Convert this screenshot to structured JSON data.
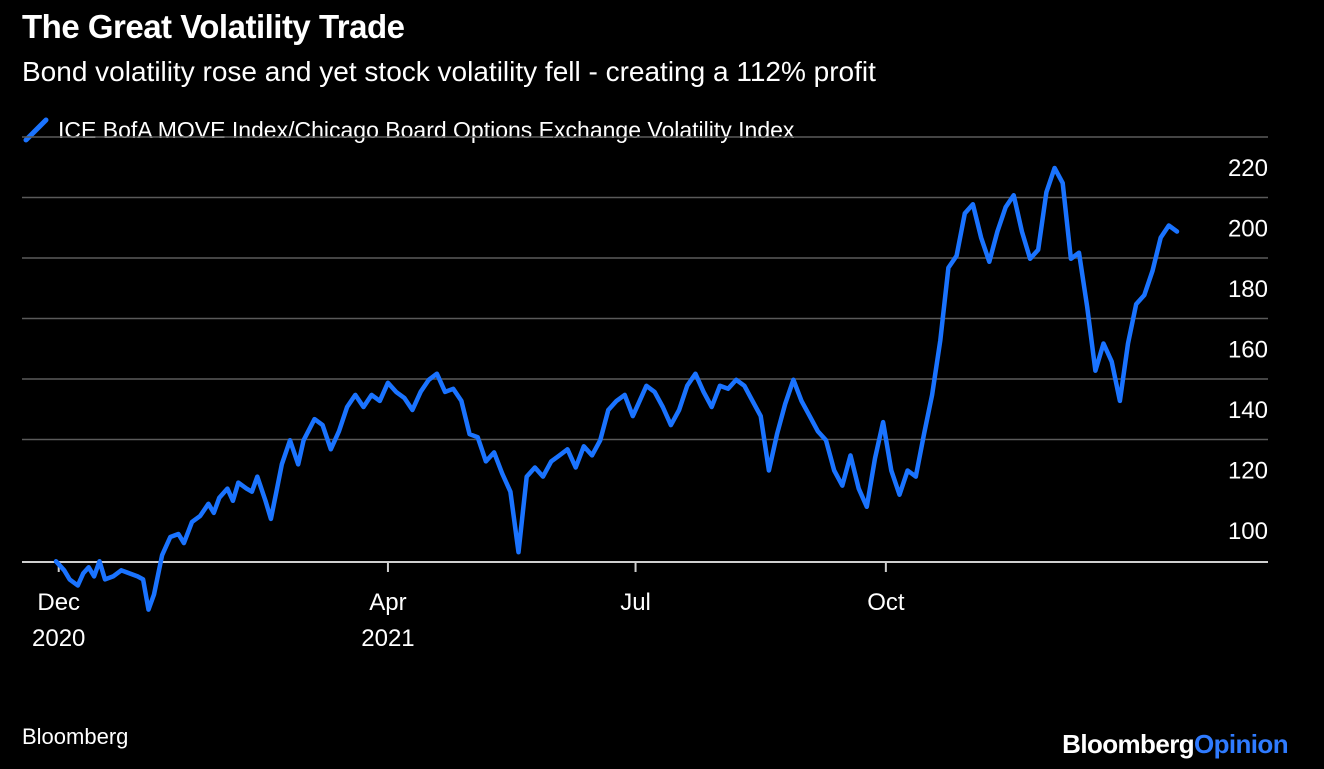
{
  "header": {
    "title": "The Great Volatility Trade",
    "subtitle": "Bond volatility rose and yet stock volatility fell - creating a 112% profit"
  },
  "legend": {
    "label": "ICE BofA MOVE Index/Chicago Board Options Exchange Volatility Index",
    "color": "#1a73ff"
  },
  "footer": {
    "source": "Bloomberg",
    "brand_part1": "Bloomberg",
    "brand_part2": "Opinion"
  },
  "chart_data": {
    "type": "line",
    "title": "The Great Volatility Trade",
    "subtitle": "Bond volatility rose and yet stock volatility fell - creating a 112% profit",
    "xlabel": "",
    "ylabel": "",
    "ylim": [
      90,
      220
    ],
    "y_ticks": [
      100,
      120,
      140,
      160,
      180,
      200,
      220
    ],
    "y_axis_side": "right",
    "grid": true,
    "legend_position": "top-left",
    "x_ticks": [
      {
        "date": "2020-12-01",
        "label": "Dec",
        "sublabel": "2020"
      },
      {
        "date": "2021-04-01",
        "label": "Apr",
        "sublabel": "2021"
      },
      {
        "date": "2021-07-01",
        "label": "Jul",
        "sublabel": ""
      },
      {
        "date": "2021-10-01",
        "label": "Oct",
        "sublabel": ""
      }
    ],
    "x_range": [
      "2020-11-30",
      "2022-01-16"
    ],
    "series": [
      {
        "name": "ICE BofA MOVE Index/Chicago Board Options Exchange Volatility Index",
        "color": "#1a73ff",
        "points": [
          [
            "2020-11-30",
            90
          ],
          [
            "2020-12-03",
            87
          ],
          [
            "2020-12-05",
            84
          ],
          [
            "2020-12-08",
            82
          ],
          [
            "2020-12-10",
            86
          ],
          [
            "2020-12-12",
            88
          ],
          [
            "2020-12-14",
            85
          ],
          [
            "2020-12-16",
            90
          ],
          [
            "2020-12-18",
            84
          ],
          [
            "2020-12-21",
            85
          ],
          [
            "2020-12-24",
            87
          ],
          [
            "2020-12-27",
            86
          ],
          [
            "2020-12-30",
            85
          ],
          [
            "2021-01-01",
            84
          ],
          [
            "2021-01-03",
            74
          ],
          [
            "2021-01-05",
            79
          ],
          [
            "2021-01-08",
            92
          ],
          [
            "2021-01-11",
            98
          ],
          [
            "2021-01-14",
            99
          ],
          [
            "2021-01-16",
            96
          ],
          [
            "2021-01-19",
            103
          ],
          [
            "2021-01-22",
            105
          ],
          [
            "2021-01-25",
            109
          ],
          [
            "2021-01-27",
            106
          ],
          [
            "2021-01-29",
            111
          ],
          [
            "2021-02-01",
            114
          ],
          [
            "2021-02-03",
            110
          ],
          [
            "2021-02-05",
            116
          ],
          [
            "2021-02-08",
            114
          ],
          [
            "2021-02-10",
            113
          ],
          [
            "2021-02-12",
            118
          ],
          [
            "2021-02-15",
            110
          ],
          [
            "2021-02-17",
            104
          ],
          [
            "2021-02-19",
            113
          ],
          [
            "2021-02-21",
            122
          ],
          [
            "2021-02-24",
            130
          ],
          [
            "2021-02-27",
            122
          ],
          [
            "2021-03-01",
            130
          ],
          [
            "2021-03-05",
            137
          ],
          [
            "2021-03-08",
            135
          ],
          [
            "2021-03-11",
            127
          ],
          [
            "2021-03-14",
            133
          ],
          [
            "2021-03-17",
            141
          ],
          [
            "2021-03-20",
            145
          ],
          [
            "2021-03-23",
            141
          ],
          [
            "2021-03-26",
            145
          ],
          [
            "2021-03-29",
            143
          ],
          [
            "2021-04-01",
            149
          ],
          [
            "2021-04-04",
            146
          ],
          [
            "2021-04-07",
            144
          ],
          [
            "2021-04-10",
            140
          ],
          [
            "2021-04-13",
            146
          ],
          [
            "2021-04-16",
            150
          ],
          [
            "2021-04-19",
            152
          ],
          [
            "2021-04-22",
            146
          ],
          [
            "2021-04-25",
            147
          ],
          [
            "2021-04-28",
            143
          ],
          [
            "2021-05-01",
            132
          ],
          [
            "2021-05-04",
            131
          ],
          [
            "2021-05-07",
            123
          ],
          [
            "2021-05-10",
            126
          ],
          [
            "2021-05-13",
            119
          ],
          [
            "2021-05-16",
            113
          ],
          [
            "2021-05-19",
            93
          ],
          [
            "2021-05-22",
            118
          ],
          [
            "2021-05-25",
            121
          ],
          [
            "2021-05-28",
            118
          ],
          [
            "2021-05-31",
            123
          ],
          [
            "2021-06-03",
            125
          ],
          [
            "2021-06-06",
            127
          ],
          [
            "2021-06-09",
            121
          ],
          [
            "2021-06-12",
            128
          ],
          [
            "2021-06-15",
            125
          ],
          [
            "2021-06-18",
            130
          ],
          [
            "2021-06-21",
            140
          ],
          [
            "2021-06-24",
            143
          ],
          [
            "2021-06-27",
            145
          ],
          [
            "2021-06-30",
            138
          ],
          [
            "2021-07-02",
            142
          ],
          [
            "2021-07-05",
            148
          ],
          [
            "2021-07-08",
            146
          ],
          [
            "2021-07-11",
            141
          ],
          [
            "2021-07-14",
            135
          ],
          [
            "2021-07-17",
            140
          ],
          [
            "2021-07-20",
            148
          ],
          [
            "2021-07-23",
            152
          ],
          [
            "2021-07-26",
            146
          ],
          [
            "2021-07-29",
            141
          ],
          [
            "2021-08-01",
            148
          ],
          [
            "2021-08-04",
            147
          ],
          [
            "2021-08-07",
            150
          ],
          [
            "2021-08-10",
            148
          ],
          [
            "2021-08-13",
            143
          ],
          [
            "2021-08-16",
            138
          ],
          [
            "2021-08-19",
            120
          ],
          [
            "2021-08-22",
            132
          ],
          [
            "2021-08-25",
            142
          ],
          [
            "2021-08-28",
            150
          ],
          [
            "2021-08-31",
            143
          ],
          [
            "2021-09-03",
            138
          ],
          [
            "2021-09-06",
            133
          ],
          [
            "2021-09-09",
            130
          ],
          [
            "2021-09-12",
            120
          ],
          [
            "2021-09-15",
            115
          ],
          [
            "2021-09-18",
            125
          ],
          [
            "2021-09-21",
            114
          ],
          [
            "2021-09-24",
            108
          ],
          [
            "2021-09-27",
            124
          ],
          [
            "2021-09-30",
            136
          ],
          [
            "2021-10-03",
            120
          ],
          [
            "2021-10-06",
            112
          ],
          [
            "2021-10-09",
            120
          ],
          [
            "2021-10-12",
            118
          ],
          [
            "2021-10-15",
            132
          ],
          [
            "2021-10-18",
            145
          ],
          [
            "2021-10-21",
            163
          ],
          [
            "2021-10-24",
            187
          ],
          [
            "2021-10-27",
            191
          ],
          [
            "2021-10-30",
            205
          ],
          [
            "2021-11-02",
            208
          ],
          [
            "2021-11-05",
            197
          ],
          [
            "2021-11-08",
            189
          ],
          [
            "2021-11-11",
            199
          ],
          [
            "2021-11-14",
            207
          ],
          [
            "2021-11-17",
            211
          ],
          [
            "2021-11-20",
            199
          ],
          [
            "2021-11-23",
            190
          ],
          [
            "2021-11-26",
            193
          ],
          [
            "2021-11-29",
            212
          ],
          [
            "2021-12-02",
            220
          ],
          [
            "2021-12-05",
            215
          ],
          [
            "2021-12-08",
            190
          ],
          [
            "2021-12-11",
            192
          ],
          [
            "2021-12-14",
            174
          ],
          [
            "2021-12-17",
            153
          ],
          [
            "2021-12-20",
            162
          ],
          [
            "2021-12-23",
            156
          ],
          [
            "2021-12-26",
            143
          ],
          [
            "2021-12-29",
            162
          ],
          [
            "2022-01-01",
            175
          ],
          [
            "2022-01-04",
            178
          ],
          [
            "2022-01-07",
            186
          ],
          [
            "2022-01-10",
            197
          ],
          [
            "2022-01-13",
            201
          ],
          [
            "2022-01-16",
            199
          ]
        ]
      }
    ]
  }
}
